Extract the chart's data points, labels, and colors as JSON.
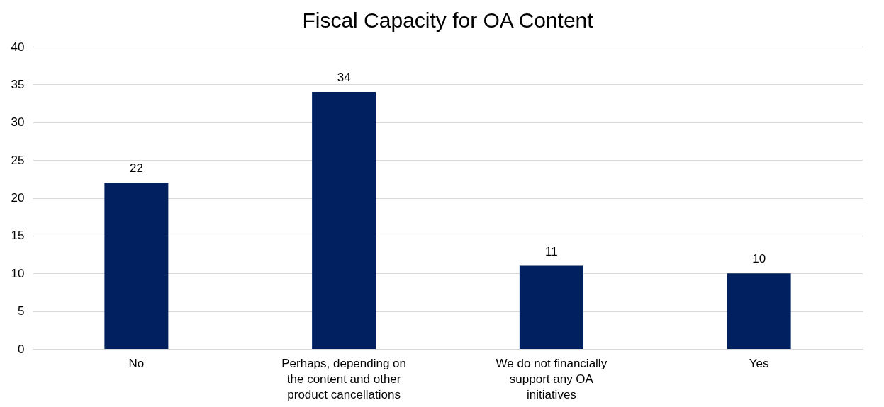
{
  "chart_data": {
    "type": "bar",
    "title": "Fiscal Capacity for OA Content",
    "categories": [
      "No",
      "Perhaps, depending on the content and other product cancellations",
      "We do not financially support any OA initiatives",
      "Yes"
    ],
    "values": [
      22,
      34,
      11,
      10
    ],
    "color": "#002060",
    "ylim": [
      0,
      40
    ],
    "yticks": [
      0,
      5,
      10,
      15,
      20,
      25,
      30,
      35,
      40
    ],
    "grid": "y",
    "data_labels": true
  }
}
